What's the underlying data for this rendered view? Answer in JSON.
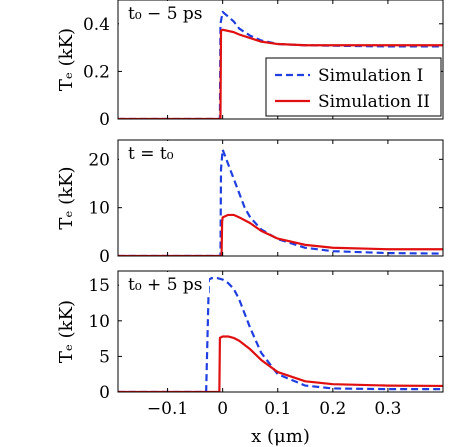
{
  "colors": {
    "simulation_1": "#1f3fe0",
    "simulation_2": "#e01010"
  },
  "chart_data": [
    {
      "type": "line",
      "annotation": "t₀ − 5 ps",
      "ylabel": "Tₑ (kK)",
      "xlim": [
        -0.19,
        0.4
      ],
      "ylim": [
        0,
        0.5
      ],
      "yticks": [
        0,
        0.2,
        0.4
      ],
      "ytick_labels": [
        "0",
        "0.2",
        "0.4"
      ],
      "legend": {
        "position": "right",
        "entries": [
          "Simulation I",
          "Simulation II"
        ]
      },
      "series": [
        {
          "name": "Simulation I",
          "style": "dashed",
          "x": [
            -0.19,
            -0.005,
            -0.004,
            0.0,
            0.01,
            0.02,
            0.03,
            0.05,
            0.07,
            0.1,
            0.15,
            0.2,
            0.3,
            0.4
          ],
          "y": [
            0,
            0,
            0.4,
            0.45,
            0.43,
            0.41,
            0.38,
            0.35,
            0.33,
            0.315,
            0.31,
            0.308,
            0.305,
            0.305
          ]
        },
        {
          "name": "Simulation II",
          "style": "solid",
          "x": [
            -0.19,
            -0.004,
            -0.003,
            0.0,
            0.01,
            0.02,
            0.03,
            0.05,
            0.07,
            0.1,
            0.15,
            0.2,
            0.3,
            0.4
          ],
          "y": [
            0,
            0,
            0.37,
            0.375,
            0.37,
            0.365,
            0.355,
            0.34,
            0.325,
            0.315,
            0.31,
            0.31,
            0.31,
            0.31
          ]
        }
      ]
    },
    {
      "type": "line",
      "annotation": "t = t₀",
      "ylabel": "Tₑ (kK)",
      "xlim": [
        -0.19,
        0.4
      ],
      "ylim": [
        0,
        24
      ],
      "yticks": [
        0,
        10,
        20
      ],
      "ytick_labels": [
        "0",
        "10",
        "20"
      ],
      "series": [
        {
          "name": "Simulation I",
          "style": "dashed",
          "x": [
            -0.19,
            -0.004,
            -0.003,
            0.0,
            0.01,
            0.02,
            0.03,
            0.04,
            0.05,
            0.07,
            0.1,
            0.15,
            0.2,
            0.3,
            0.4
          ],
          "y": [
            0,
            0,
            18,
            22,
            19,
            16,
            13,
            10,
            8,
            5.5,
            3.5,
            1.7,
            1.0,
            0.6,
            0.5
          ]
        },
        {
          "name": "Simulation II",
          "style": "solid",
          "x": [
            -0.19,
            -0.002,
            -0.001,
            0.0,
            0.01,
            0.02,
            0.03,
            0.05,
            0.07,
            0.1,
            0.15,
            0.2,
            0.3,
            0.4
          ],
          "y": [
            0,
            0,
            7.0,
            8.0,
            8.5,
            8.5,
            8.0,
            6.8,
            5.2,
            3.6,
            2.3,
            1.7,
            1.4,
            1.4
          ]
        }
      ]
    },
    {
      "type": "line",
      "annotation": "t₀ + 5 ps",
      "ylabel": "Tₑ (kK)",
      "xlabel": "x (μm)",
      "xlim": [
        -0.19,
        0.4
      ],
      "ylim": [
        0,
        17
      ],
      "yticks": [
        0,
        5,
        10,
        15
      ],
      "ytick_labels": [
        "0",
        "5",
        "10",
        "15"
      ],
      "xticks": [
        -0.1,
        0,
        0.1,
        0.2,
        0.3
      ],
      "xtick_labels": [
        "−0.1",
        "0",
        "0.1",
        "0.2",
        "0.3"
      ],
      "series": [
        {
          "name": "Simulation I",
          "style": "dashed",
          "x": [
            -0.19,
            -0.03,
            -0.025,
            -0.02,
            -0.01,
            0.0,
            0.01,
            0.02,
            0.03,
            0.04,
            0.05,
            0.07,
            0.1,
            0.15,
            0.2,
            0.3,
            0.4
          ],
          "y": [
            0,
            0,
            15.8,
            16.0,
            16.0,
            15.8,
            15.3,
            14.5,
            13.0,
            11.0,
            9.0,
            5.5,
            2.5,
            0.9,
            0.5,
            0.4,
            0.4
          ]
        },
        {
          "name": "Simulation II",
          "style": "solid",
          "x": [
            -0.19,
            -0.006,
            -0.005,
            0.0,
            0.01,
            0.02,
            0.03,
            0.05,
            0.07,
            0.1,
            0.15,
            0.2,
            0.3,
            0.4
          ],
          "y": [
            0,
            0,
            7.6,
            7.8,
            7.8,
            7.6,
            7.2,
            6.0,
            4.5,
            2.8,
            1.5,
            1.1,
            0.9,
            0.85
          ]
        }
      ]
    }
  ]
}
